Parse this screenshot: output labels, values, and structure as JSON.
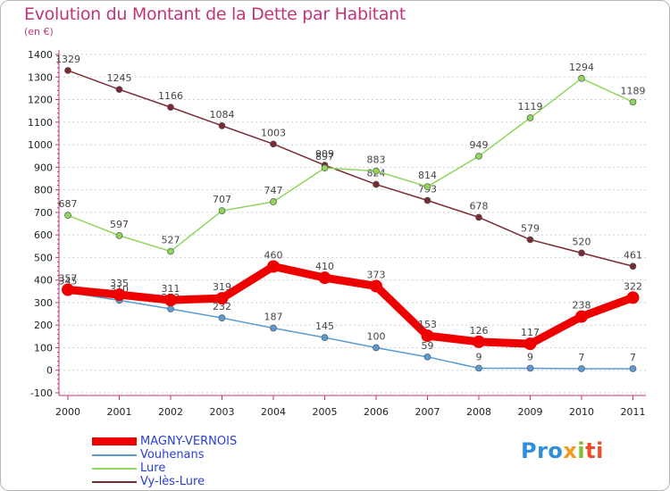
{
  "chart_data": {
    "type": "line",
    "title": "Evolution du Montant de la Dette par Habitant",
    "subtitle": "(en €)",
    "x": [
      "2000",
      "2001",
      "2002",
      "2003",
      "2004",
      "2005",
      "2006",
      "2007",
      "2008",
      "2009",
      "2010",
      "2011"
    ],
    "ylim": [
      -100,
      1400
    ],
    "yticks": [
      -100,
      0,
      100,
      200,
      300,
      400,
      500,
      600,
      700,
      800,
      900,
      1000,
      1100,
      1200,
      1300,
      1400
    ],
    "grid": "horizontal dashed",
    "legend_position": "bottom-left",
    "series": [
      {
        "name": "Vy-lès-Lure",
        "color": "#7a2a32",
        "values": [
          1329,
          1245,
          1166,
          1084,
          1003,
          909,
          824,
          753,
          678,
          579,
          520,
          461
        ]
      },
      {
        "name": "Lure",
        "color": "#8fd65a",
        "values": [
          687,
          597,
          527,
          707,
          747,
          897,
          883,
          814,
          949,
          1119,
          1294,
          1189
        ]
      },
      {
        "name": "Vouhenans",
        "color": "#5b9bd5",
        "values": [
          345,
          310,
          272,
          232,
          187,
          145,
          100,
          59,
          9,
          9,
          7,
          7
        ]
      },
      {
        "name": "MAGNY-VERNOIS",
        "color": "#ee0000",
        "values": [
          357,
          335,
          311,
          319,
          460,
          410,
          373,
          153,
          126,
          117,
          238,
          322
        ]
      }
    ]
  },
  "legend": [
    {
      "label": "MAGNY-VERNOIS",
      "color": "#ee0000",
      "label_color": "#2a3fd0",
      "thick": true
    },
    {
      "label": "Vouhenans",
      "color": "#5b9bd5",
      "label_color": "#2a3fd0",
      "thick": false
    },
    {
      "label": "Lure",
      "color": "#8fd65a",
      "label_color": "#2a3fd0",
      "thick": false
    },
    {
      "label": "Vy-lès-Lure",
      "color": "#7a2a32",
      "label_color": "#2a3fd0",
      "thick": false
    }
  ],
  "logo": {
    "p1": "Pro",
    "p2": "x",
    "p3": "i",
    "p4": "ti"
  }
}
